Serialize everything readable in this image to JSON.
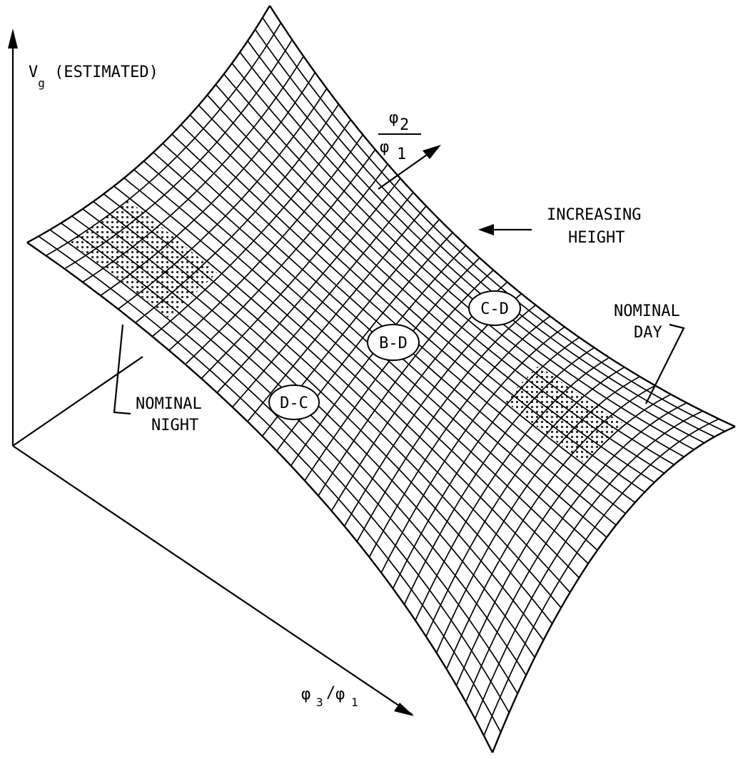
{
  "axes": {
    "vertical_label_main": "V",
    "vertical_label_sub": "g",
    "vertical_label_rest": " (ESTIMATED)",
    "phi2_num": "φ",
    "phi2_num_sub": "2",
    "phi2_den": "φ",
    "phi2_den_sub": "1",
    "phi3_main": "φ",
    "phi3_sub": "3",
    "phi3_slash": "/",
    "phi3_den": "φ",
    "phi3_den_sub": "1"
  },
  "annotations": {
    "increasing_line1": "INCREASING",
    "increasing_line2": "HEIGHT",
    "nominal_night_line1": "NOMINAL",
    "nominal_night_line2": "NIGHT",
    "nominal_day_line1": "NOMINAL",
    "nominal_day_line2": "DAY"
  },
  "markers": [
    {
      "label": "D-C"
    },
    {
      "label": "B-D"
    },
    {
      "label": "C-D"
    }
  ],
  "colors": {
    "ink": "#000000",
    "paper": "#ffffff"
  }
}
